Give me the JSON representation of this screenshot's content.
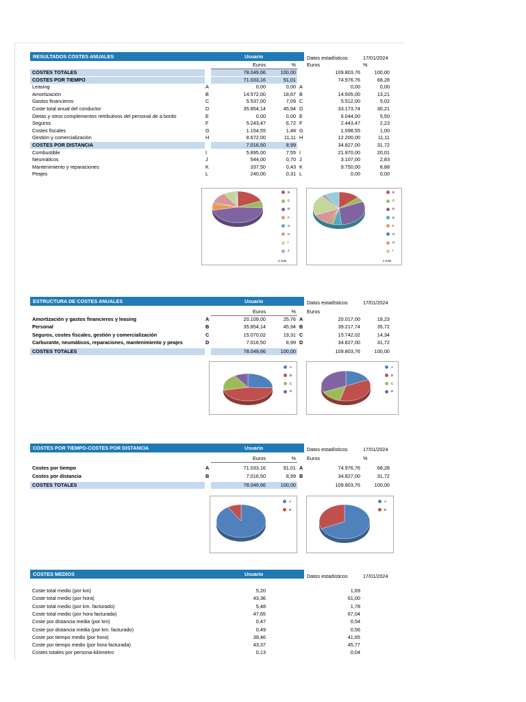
{
  "sections": {
    "anuales": {
      "title": "RESULTADOS COSTES ANUALES",
      "user_label": "Usuario",
      "stats_label": "Datos estadísticos",
      "date": "17/01/2024",
      "euros_label": "Euros",
      "pct_label": "%",
      "rows": [
        {
          "label": "COSTES TOTALES",
          "code": "",
          "u_eur": "78.049,66",
          "u_pct": "100,00",
          "code2": "",
          "s_eur": "109.803,76",
          "s_pct": "100,00",
          "band": true,
          "bold": true
        },
        {
          "label": "COSTES POR TIEMPO",
          "code": "",
          "u_eur": "71.033,16",
          "u_pct": "91,01",
          "code2": "",
          "s_eur": "74.976,76",
          "s_pct": "68,28",
          "band": true,
          "bold": true
        },
        {
          "label": "Leasing",
          "code": "A",
          "u_eur": "0,00",
          "u_pct": "0,00",
          "code2": "A",
          "s_eur": "0,00",
          "s_pct": "0,00"
        },
        {
          "label": "Amortización",
          "code": "B",
          "u_eur": "14.572,00",
          "u_pct": "18,67",
          "code2": "B",
          "s_eur": "14.505,00",
          "s_pct": "13,21"
        },
        {
          "label": "Gastos financieros",
          "code": "C",
          "u_eur": "5.537,00",
          "u_pct": "7,09",
          "code2": "C",
          "s_eur": "5.512,00",
          "s_pct": "5,02"
        },
        {
          "label": "Coste total anual del conductor",
          "code": "D",
          "u_eur": "35.854,14",
          "u_pct": "45,94",
          "code2": "D",
          "s_eur": "33.173,74",
          "s_pct": "30,21"
        },
        {
          "label": "Dietas y otros complementos retributivos del personal de a bordo",
          "code": "E",
          "u_eur": "0,00",
          "u_pct": "0,00",
          "code2": "E",
          "s_eur": "6.044,00",
          "s_pct": "5,50"
        },
        {
          "label": "Seguros",
          "code": "F",
          "u_eur": "5.243,47",
          "u_pct": "6,72",
          "code2": "F",
          "s_eur": "2.443,47",
          "s_pct": "2,23"
        },
        {
          "label": "Costes fiscales",
          "code": "G",
          "u_eur": "1.154,55",
          "u_pct": "1,48",
          "code2": "G",
          "s_eur": "1.098,55",
          "s_pct": "1,00"
        },
        {
          "label": "Gestión y comercialización",
          "code": "H",
          "u_eur": "8.672,00",
          "u_pct": "11,11",
          "code2": "H",
          "s_eur": "12.200,00",
          "s_pct": "11,11"
        },
        {
          "label": "COSTES POR DISTANCIA",
          "code": "",
          "u_eur": "7.016,50",
          "u_pct": "8,99",
          "code2": "",
          "s_eur": "34.827,00",
          "s_pct": "31,72",
          "band": true,
          "bold": true
        },
        {
          "label": "Combustible",
          "code": "I",
          "u_eur": "5.895,00",
          "u_pct": "7,55",
          "code2": "I",
          "s_eur": "21.970,00",
          "s_pct": "20,01"
        },
        {
          "label": "Neumáticos",
          "code": "J",
          "u_eur": "544,00",
          "u_pct": "0,70",
          "code2": "J",
          "s_eur": "3.107,00",
          "s_pct": "2,83"
        },
        {
          "label": "Mantenimiento y reparaciones",
          "code": "K",
          "u_eur": "337,50",
          "u_pct": "0,43",
          "code2": "K",
          "s_eur": "9.750,00",
          "s_pct": "8,88"
        },
        {
          "label": "Peajes",
          "code": "L",
          "u_eur": "240,00",
          "u_pct": "0,31",
          "code2": "L",
          "s_eur": "0,00",
          "s_pct": "0,00"
        }
      ]
    },
    "estructura": {
      "title": "ESTRUCTURA DE COSTES ANUALES",
      "user_label": "Usuario",
      "stats_label": "Datos estadísticos",
      "date": "17/01/2024",
      "euros_label": "Euros",
      "pct_label": "%",
      "stats_euros_label": "Euros",
      "rows": [
        {
          "label": "Amortización y gastos financieros y leasing",
          "code": "A",
          "u_eur": "20.109,00",
          "u_pct": "25,76",
          "code2": "A",
          "s_eur": "20.017,00",
          "s_pct": "18,23",
          "bold": true
        },
        {
          "label": "Personal",
          "code": "B",
          "u_eur": "35.854,14",
          "u_pct": "45,94",
          "code2": "B",
          "s_eur": "39.217,74",
          "s_pct": "35,72",
          "bold": true
        },
        {
          "label": "Seguros, costes fiscales, gestión y comercialización",
          "code": "C",
          "u_eur": "15.070,02",
          "u_pct": "19,31",
          "code2": "C",
          "s_eur": "15.742,02",
          "s_pct": "14,34",
          "bold": true
        },
        {
          "label": "Carburante, neumáticos, reparaciones, mantenimiento y peajes",
          "code": "D",
          "u_eur": "7.016,50",
          "u_pct": "8,99",
          "code2": "D",
          "s_eur": "34.827,00",
          "s_pct": "31,72",
          "bold": true
        }
      ],
      "total": {
        "label": "COSTES TOTALES",
        "u_eur": "78.049,66",
        "u_pct": "100,00",
        "s_eur": "109.803,76",
        "s_pct": "100,00"
      }
    },
    "tiempo_distancia": {
      "title": "COSTES POR TIEMPO-COSTES POR DISTANCIA",
      "user_label": "Usuario",
      "stats_label": "Datos estadísticos",
      "date": "17/01/2024",
      "euros_label": "Euros",
      "pct_label": "%",
      "stats_euros_label": "Euros",
      "rows": [
        {
          "label": "Costes por tiempo",
          "code": "A",
          "u_eur": "71.033,16",
          "u_pct": "91,01",
          "code2": "A",
          "s_eur": "74.976,76",
          "s_pct": "68,28",
          "bold": true
        },
        {
          "label": "Costes por distancia",
          "code": "B",
          "u_eur": "7.016,50",
          "u_pct": "8,99",
          "code2": "B",
          "s_eur": "34.827,00",
          "s_pct": "31,72",
          "bold": true
        }
      ],
      "total": {
        "label": "COSTES TOTALES",
        "u_eur": "78.049,66",
        "u_pct": "100,00",
        "s_eur": "109.803,76",
        "s_pct": "100,00"
      }
    },
    "medios": {
      "title": "COSTES MEDIOS",
      "user_label": "Usuario",
      "stats_label": "Datos estadísticos",
      "date": "17/01/2024",
      "rows": [
        {
          "label": "Coste total medio (por km)",
          "u": "5,20",
          "s": "1,69"
        },
        {
          "label": "Coste total medio (por hora)",
          "u": "43,36",
          "s": "61,00"
        },
        {
          "label": "Coste total medio (por km. facturado)",
          "u": "5,48",
          "s": "1,78"
        },
        {
          "label": "Coste total medio (por hora facturada)",
          "u": "47,65",
          "s": "67,04"
        },
        {
          "label": "Coste por distancia media (por km)",
          "u": "0,47",
          "s": "0,54"
        },
        {
          "label": "Coste por distancia media (por km. facturado)",
          "u": "0,49",
          "s": "0,56"
        },
        {
          "label": "Coste por tiempo medio (por hora)",
          "u": "39,46",
          "s": "41,65"
        },
        {
          "label": "Coste por tiempo medio (por hora facturada)",
          "u": "43,37",
          "s": "45,77"
        },
        {
          "label": "Costes totales por persona-kilómetro",
          "u": "0,13",
          "s": "0,04"
        }
      ]
    }
  },
  "chart_data": [
    {
      "type": "pie",
      "id": "anuales-usuario",
      "categories": [
        "B",
        "C",
        "D",
        "F",
        "G",
        "H",
        "I",
        "J",
        "K",
        "L"
      ],
      "values": [
        18.67,
        7.09,
        45.94,
        6.72,
        1.48,
        11.11,
        7.55,
        0.7,
        0.43,
        0.31
      ],
      "colors": [
        "#c0504d",
        "#9bbb59",
        "#8064a2",
        "#f79646",
        "#4bacc6",
        "#d99694",
        "#c3d69b",
        "#b3a2c7",
        "#4f81bd",
        "#8db3e2"
      ],
      "legend": [
        "B",
        "C",
        "D",
        "F",
        "G",
        "H",
        "I",
        "J"
      ],
      "legend_more": "2 más"
    },
    {
      "type": "pie",
      "id": "anuales-estadisticos",
      "categories": [
        "B",
        "C",
        "D",
        "E",
        "F",
        "G",
        "H",
        "I",
        "J",
        "K"
      ],
      "values": [
        13.21,
        5.02,
        30.21,
        5.5,
        2.23,
        1.0,
        11.11,
        20.01,
        2.83,
        8.88
      ],
      "colors": [
        "#c0504d",
        "#9bbb59",
        "#8064a2",
        "#4bacc6",
        "#f79646",
        "#4f81bd",
        "#d99694",
        "#c3d69b",
        "#b3a2c7",
        "#93cddd"
      ],
      "legend": [
        "B",
        "C",
        "D",
        "E",
        "F",
        "G",
        "H",
        "I"
      ],
      "legend_more": "2 más"
    },
    {
      "type": "pie",
      "id": "estructura-usuario",
      "categories": [
        "A",
        "B",
        "C",
        "D"
      ],
      "values": [
        25.76,
        45.94,
        19.31,
        8.99
      ],
      "colors": [
        "#4f81bd",
        "#c0504d",
        "#9bbb59",
        "#8064a2"
      ],
      "legend": [
        "A",
        "B",
        "C",
        "D"
      ]
    },
    {
      "type": "pie",
      "id": "estructura-estadisticos",
      "categories": [
        "A",
        "B",
        "C",
        "D"
      ],
      "values": [
        18.23,
        35.72,
        14.34,
        31.72
      ],
      "colors": [
        "#4f81bd",
        "#c0504d",
        "#9bbb59",
        "#8064a2"
      ],
      "legend": [
        "A",
        "B",
        "C",
        "D"
      ]
    },
    {
      "type": "pie",
      "id": "td-usuario",
      "categories": [
        "A",
        "B"
      ],
      "values": [
        91.01,
        8.99
      ],
      "colors": [
        "#4f81bd",
        "#c0504d"
      ],
      "legend": [
        "A",
        "B"
      ]
    },
    {
      "type": "pie",
      "id": "td-estadisticos",
      "categories": [
        "A",
        "B"
      ],
      "values": [
        68.28,
        31.72
      ],
      "colors": [
        "#4f81bd",
        "#c0504d"
      ],
      "legend": [
        "A",
        "B"
      ]
    }
  ]
}
